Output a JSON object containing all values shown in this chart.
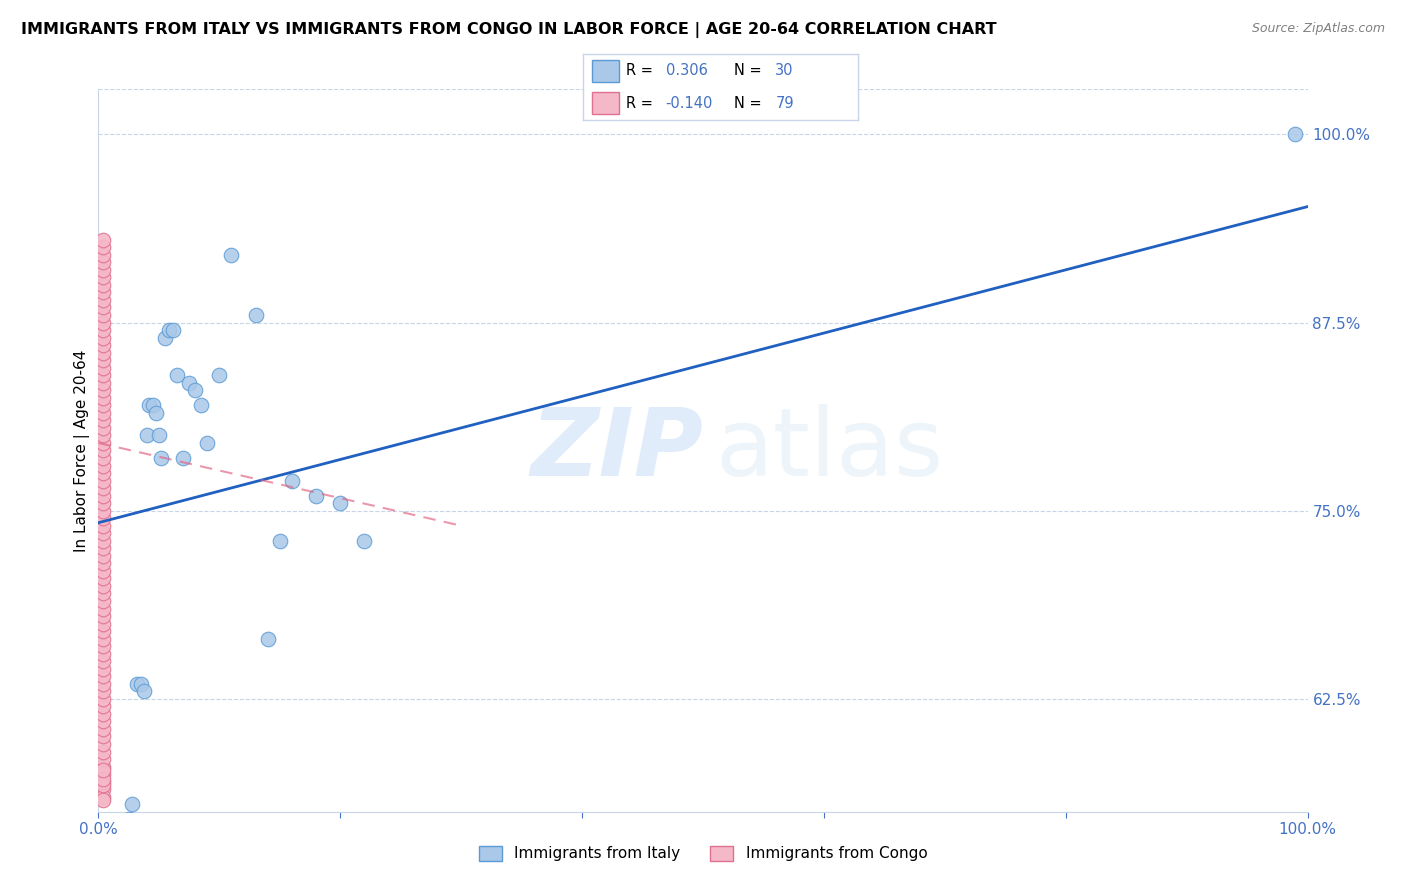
{
  "title": "IMMIGRANTS FROM ITALY VS IMMIGRANTS FROM CONGO IN LABOR FORCE | AGE 20-64 CORRELATION CHART",
  "source": "Source: ZipAtlas.com",
  "ylabel": "In Labor Force | Age 20-64",
  "xlim": [
    0.0,
    1.0
  ],
  "ylim": [
    0.55,
    1.03
  ],
  "x_ticks": [
    0.0,
    0.2,
    0.4,
    0.6,
    0.8,
    1.0
  ],
  "x_tick_labels": [
    "0.0%",
    "",
    "",
    "",
    "",
    "100.0%"
  ],
  "y_tick_labels_right": [
    "62.5%",
    "75.0%",
    "87.5%",
    "100.0%"
  ],
  "y_tick_positions_right": [
    0.625,
    0.75,
    0.875,
    1.0
  ],
  "italy_color": "#aac8e8",
  "italy_edge_color": "#5b9bd5",
  "congo_color": "#f4b8c8",
  "congo_edge_color": "#e07090",
  "italy_line_color": "#2060c0",
  "congo_line_color": "#e06080",
  "italy_scatter_x": [
    0.025,
    0.028,
    0.032,
    0.035,
    0.038,
    0.04,
    0.042,
    0.045,
    0.048,
    0.05,
    0.052,
    0.055,
    0.058,
    0.062,
    0.065,
    0.07,
    0.075,
    0.08,
    0.085,
    0.09,
    0.1,
    0.11,
    0.13,
    0.15,
    0.16,
    0.18,
    0.2,
    0.22,
    0.14,
    0.99
  ],
  "italy_scatter_y": [
    0.545,
    0.555,
    0.635,
    0.635,
    0.63,
    0.8,
    0.82,
    0.82,
    0.815,
    0.8,
    0.785,
    0.865,
    0.87,
    0.87,
    0.84,
    0.785,
    0.835,
    0.83,
    0.82,
    0.795,
    0.84,
    0.92,
    0.88,
    0.73,
    0.77,
    0.76,
    0.755,
    0.73,
    0.665,
    1.0
  ],
  "congo_scatter_x": [
    0.004,
    0.004,
    0.004,
    0.004,
    0.004,
    0.004,
    0.004,
    0.004,
    0.004,
    0.004,
    0.004,
    0.004,
    0.004,
    0.004,
    0.004,
    0.004,
    0.004,
    0.004,
    0.004,
    0.004,
    0.004,
    0.004,
    0.004,
    0.004,
    0.004,
    0.004,
    0.004,
    0.004,
    0.004,
    0.004,
    0.004,
    0.004,
    0.004,
    0.004,
    0.004,
    0.004,
    0.004,
    0.004,
    0.004,
    0.004,
    0.004,
    0.004,
    0.004,
    0.004,
    0.004,
    0.004,
    0.004,
    0.004,
    0.004,
    0.004,
    0.004,
    0.004,
    0.004,
    0.004,
    0.004,
    0.004,
    0.004,
    0.004,
    0.004,
    0.004,
    0.004,
    0.004,
    0.004,
    0.004,
    0.004,
    0.004,
    0.004,
    0.004,
    0.004,
    0.004,
    0.004,
    0.004,
    0.004,
    0.004,
    0.004,
    0.004,
    0.004,
    0.004,
    0.004
  ],
  "congo_scatter_y": [
    0.565,
    0.57,
    0.575,
    0.58,
    0.585,
    0.59,
    0.595,
    0.6,
    0.605,
    0.61,
    0.615,
    0.62,
    0.625,
    0.63,
    0.635,
    0.64,
    0.645,
    0.65,
    0.655,
    0.66,
    0.665,
    0.67,
    0.675,
    0.68,
    0.685,
    0.69,
    0.695,
    0.7,
    0.705,
    0.71,
    0.715,
    0.72,
    0.725,
    0.73,
    0.735,
    0.74,
    0.745,
    0.75,
    0.755,
    0.76,
    0.765,
    0.77,
    0.775,
    0.78,
    0.785,
    0.79,
    0.795,
    0.8,
    0.805,
    0.81,
    0.815,
    0.82,
    0.825,
    0.83,
    0.835,
    0.84,
    0.845,
    0.85,
    0.855,
    0.86,
    0.865,
    0.87,
    0.875,
    0.88,
    0.885,
    0.89,
    0.895,
    0.9,
    0.905,
    0.91,
    0.915,
    0.92,
    0.925,
    0.93,
    0.56,
    0.568,
    0.572,
    0.558,
    0.578
  ],
  "italy_line_x": [
    0.0,
    1.0
  ],
  "italy_line_y": [
    0.742,
    0.952
  ],
  "congo_line_x": [
    0.0,
    0.3
  ],
  "congo_line_y": [
    0.795,
    0.74
  ]
}
